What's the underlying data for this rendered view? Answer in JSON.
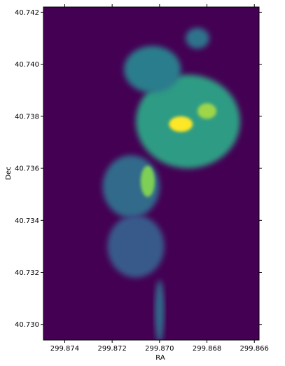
{
  "chart_data": {
    "type": "heatmap",
    "title": "",
    "xlabel": "RA",
    "ylabel": "Dec",
    "x_ticks": [
      "299.874",
      "299.872",
      "299.870",
      "299.868",
      "299.866"
    ],
    "y_ticks": [
      "40.742",
      "40.740",
      "40.738",
      "40.736",
      "40.734",
      "40.732",
      "40.730"
    ],
    "x_tick_values": [
      299.874,
      299.872,
      299.87,
      299.868,
      299.866
    ],
    "y_tick_values": [
      40.742,
      40.74,
      40.738,
      40.736,
      40.734,
      40.732,
      40.73
    ],
    "xlim": [
      299.8749,
      299.8658
    ],
    "ylim": [
      40.7294,
      40.7422
    ],
    "x_reversed": true,
    "colormap": "viridis",
    "background_color": "#440154",
    "grid": false,
    "features": [
      {
        "kind": "lobe",
        "ra": 299.8688,
        "dec": 40.7378,
        "ra_radius": 0.0022,
        "dec_radius": 0.0018,
        "level": 0.55
      },
      {
        "kind": "lobe",
        "ra": 299.8703,
        "dec": 40.7398,
        "ra_radius": 0.0012,
        "dec_radius": 0.0009,
        "level": 0.42
      },
      {
        "kind": "lobe",
        "ra": 299.8684,
        "dec": 40.741,
        "ra_radius": 0.0005,
        "dec_radius": 0.0004,
        "level": 0.38
      },
      {
        "kind": "lobe",
        "ra": 299.8712,
        "dec": 40.7353,
        "ra_radius": 0.0012,
        "dec_radius": 0.0012,
        "level": 0.35
      },
      {
        "kind": "hotspot",
        "ra": 299.8691,
        "dec": 40.7377,
        "ra_radius": 0.0005,
        "dec_radius": 0.0003,
        "level": 1.0
      },
      {
        "kind": "hotspot",
        "ra": 299.868,
        "dec": 40.7382,
        "ra_radius": 0.0004,
        "dec_radius": 0.0003,
        "level": 0.85
      },
      {
        "kind": "jet",
        "ra": 299.8705,
        "dec": 40.7355,
        "ra_radius": 0.0003,
        "dec_radius": 0.0006,
        "level": 0.8
      },
      {
        "kind": "tail",
        "ra": 299.871,
        "dec": 40.733,
        "ra_radius": 0.0012,
        "dec_radius": 0.0012,
        "level": 0.28
      },
      {
        "kind": "stem",
        "ra": 299.87,
        "dec": 40.7305,
        "ra_radius": 0.0002,
        "dec_radius": 0.0012,
        "level": 0.35
      }
    ]
  }
}
